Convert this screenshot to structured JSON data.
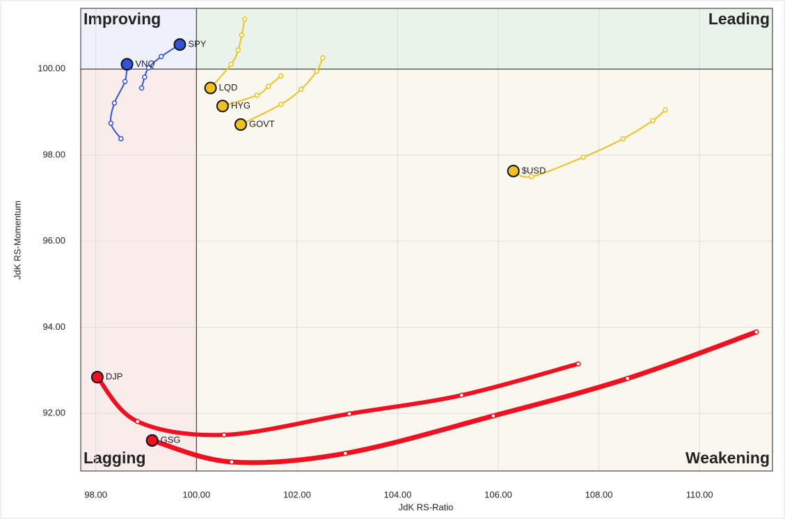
{
  "chart_data": {
    "type": "scatter",
    "x_label": "JdK RS-Ratio",
    "y_label": "JdK RS-Momentum",
    "xlim": [
      97.7,
      111.45
    ],
    "ylim": [
      90.66,
      101.41
    ],
    "xticks": [
      {
        "value": 98,
        "label": "98.00"
      },
      {
        "value": 100,
        "label": "100.00"
      },
      {
        "value": 102,
        "label": "102.00"
      },
      {
        "value": 104,
        "label": "104.00"
      },
      {
        "value": 106,
        "label": "106.00"
      },
      {
        "value": 108,
        "label": "108.00"
      },
      {
        "value": 110,
        "label": "110.00"
      }
    ],
    "yticks": [
      {
        "value": 92,
        "label": "92.00"
      },
      {
        "value": 94,
        "label": "94.00"
      },
      {
        "value": 96,
        "label": "96.00"
      },
      {
        "value": 98,
        "label": "98.00"
      },
      {
        "value": 100,
        "label": "100.00"
      }
    ],
    "grid": true,
    "center": [
      100,
      100
    ],
    "quadrants": [
      {
        "label": "Improving",
        "corner": "top-left",
        "color": "#6f7ff0",
        "background": "#eef0fb"
      },
      {
        "label": "Leading",
        "corner": "top-right",
        "color": "#5fae5f",
        "background": "#e9f3ea"
      },
      {
        "label": "Lagging",
        "corner": "bottom-left",
        "color": "#f08a8a",
        "background": "#fbecec"
      },
      {
        "label": "Weakening",
        "corner": "bottom-right",
        "color": "#f2c230",
        "background": "#faf7ee"
      }
    ],
    "series": [
      {
        "name": "SPY",
        "color": "#3452d8",
        "x": [
          98.91,
          98.97,
          99.05,
          99.3,
          99.67
        ],
        "y": [
          99.56,
          99.81,
          100.03,
          100.29,
          100.57
        ]
      },
      {
        "name": "VNQ",
        "color": "#3452d8",
        "x": [
          98.5,
          98.3,
          98.37,
          98.58,
          98.62
        ],
        "y": [
          98.38,
          98.74,
          99.21,
          99.71,
          100.11
        ]
      },
      {
        "name": "LQD",
        "color": "#f0c020",
        "x": [
          100.96,
          100.9,
          100.83,
          100.69,
          100.28
        ],
        "y": [
          101.16,
          100.79,
          100.44,
          100.11,
          99.56
        ]
      },
      {
        "name": "HYG",
        "color": "#f0c020",
        "x": [
          101.68,
          101.43,
          101.2,
          100.52
        ],
        "y": [
          99.84,
          99.6,
          99.39,
          99.14
        ]
      },
      {
        "name": "GOVT",
        "color": "#f0c020",
        "x": [
          102.51,
          102.39,
          102.08,
          101.68,
          100.88
        ],
        "y": [
          100.26,
          99.95,
          99.53,
          99.18,
          98.71
        ]
      },
      {
        "name": "$USD",
        "color": "#f0c020",
        "x": [
          109.32,
          109.07,
          108.48,
          107.69,
          106.66,
          106.3
        ],
        "y": [
          99.05,
          98.8,
          98.38,
          97.95,
          97.5,
          97.63
        ]
      },
      {
        "name": "DJP",
        "color": "#ee1122",
        "x": [
          107.59,
          105.27,
          103.04,
          100.55,
          98.83,
          98.03
        ],
        "y": [
          93.15,
          92.42,
          91.99,
          91.5,
          91.81,
          92.84
        ]
      },
      {
        "name": "GSG",
        "color": "#ee1122",
        "x": [
          111.13,
          108.57,
          105.9,
          102.96,
          100.7,
          99.12
        ],
        "y": [
          93.89,
          92.81,
          91.94,
          91.07,
          90.87,
          91.37
        ]
      }
    ]
  }
}
